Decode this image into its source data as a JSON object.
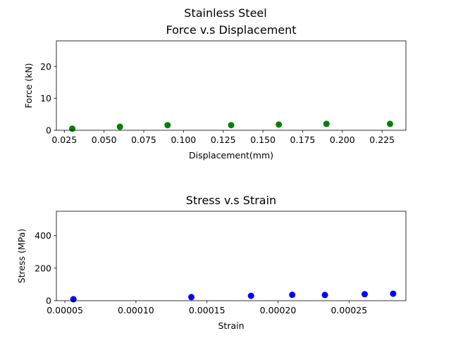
{
  "suptitle": "Stainless Steel",
  "chart_data": [
    {
      "type": "scatter",
      "title": "Force v.s Displacement",
      "xlabel": "Displacement(mm)",
      "ylabel": "Force (kN)",
      "color": "#008000",
      "xlim": [
        0.02,
        0.24
      ],
      "ylim": [
        0,
        28
      ],
      "xticks": [
        0.025,
        0.05,
        0.075,
        0.1,
        0.125,
        0.15,
        0.175,
        0.2,
        0.225
      ],
      "xtick_labels": [
        "0.025",
        "0.050",
        "0.075",
        "0.100",
        "0.125",
        "0.150",
        "0.175",
        "0.200",
        "0.225"
      ],
      "yticks": [
        0,
        10,
        20
      ],
      "ytick_labels": [
        "0",
        "10",
        "20"
      ],
      "grid": false,
      "x": [
        0.03,
        0.06,
        0.09,
        0.13,
        0.16,
        0.19,
        0.23
      ],
      "y": [
        0.5,
        1.1,
        1.6,
        1.6,
        1.8,
        2.0,
        2.0
      ]
    },
    {
      "type": "scatter",
      "title": "Stress v.s Strain",
      "xlabel": "Strain",
      "ylabel": "Stress (MPa)",
      "color": "#0000ff",
      "xlim": [
        4.4e-05,
        0.00029
      ],
      "ylim": [
        0,
        550
      ],
      "xticks": [
        5e-05,
        0.0001,
        0.00015,
        0.0002,
        0.00025
      ],
      "xtick_labels": [
        "0.00005",
        "0.00010",
        "0.00015",
        "0.00020",
        "0.00025"
      ],
      "yticks": [
        0,
        200,
        400
      ],
      "ytick_labels": [
        "0",
        "200",
        "400"
      ],
      "grid": false,
      "x": [
        5.6e-05,
        0.000139,
        0.000181,
        0.00021,
        0.000233,
        0.000261,
        0.000281
      ],
      "y": [
        9,
        22,
        30,
        36,
        35,
        40,
        43
      ]
    }
  ]
}
